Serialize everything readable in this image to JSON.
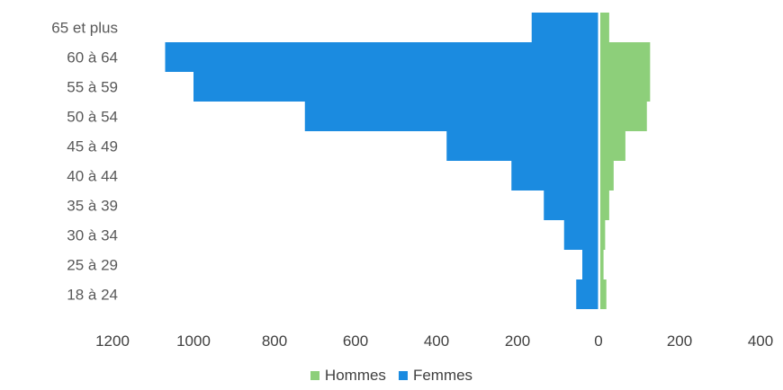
{
  "chart_data": {
    "type": "bar",
    "orientation": "horizontal",
    "subtype": "population-pyramid",
    "categories": [
      "18 à 24",
      "25 à 29",
      "30 à 34",
      "35 à 39",
      "40 à 44",
      "45 à 49",
      "50 à 54",
      "55 à 59",
      "60 à 64",
      "65 et plus"
    ],
    "series": [
      {
        "name": "Hommes",
        "color": "#8DCF7A",
        "side": "right",
        "values": [
          15,
          8,
          12,
          22,
          33,
          62,
          115,
          123,
          123,
          22
        ]
      },
      {
        "name": "Femmes",
        "color": "#1B8BE0",
        "side": "left",
        "values": [
          55,
          40,
          85,
          135,
          215,
          375,
          725,
          1000,
          1070,
          165
        ]
      }
    ],
    "x_ticks": [
      "1200",
      "1000",
      "800",
      "600",
      "400",
      "200",
      "0",
      "200",
      "400"
    ],
    "legend_position": "bottom",
    "grid": false
  }
}
